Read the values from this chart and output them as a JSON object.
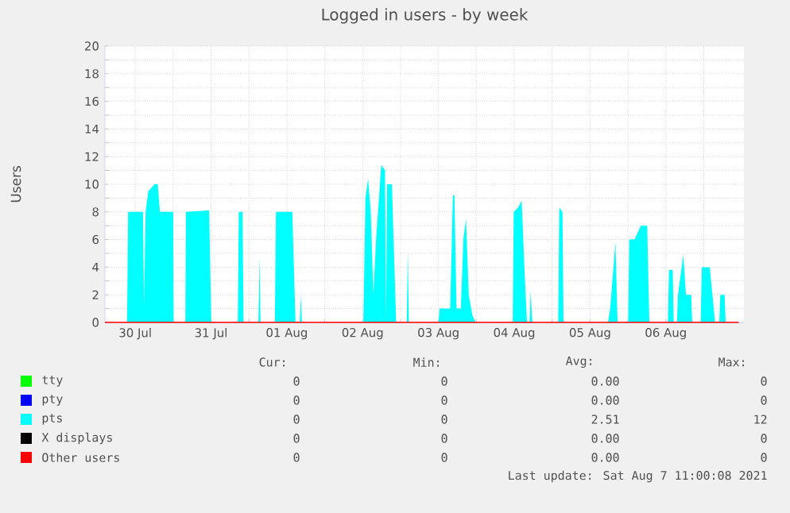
{
  "chart_data": {
    "type": "area",
    "title": "Logged in users - by week",
    "ylabel": "Users",
    "xlim": [
      "2021-07-30T02:24",
      "2021-08-07T12:43"
    ],
    "ylim": [
      0,
      20
    ],
    "xticks": [
      {
        "value": "2021-07-30T12:00",
        "label": "30 Jul"
      },
      {
        "value": "2021-07-31T00:00",
        "label": null
      },
      {
        "value": "2021-07-31T12:00",
        "label": "31 Jul"
      },
      {
        "value": "2021-08-01T00:00",
        "label": null
      },
      {
        "value": "2021-08-01T12:00",
        "label": "01 Aug"
      },
      {
        "value": "2021-08-02T00:00",
        "label": null
      },
      {
        "value": "2021-08-02T12:00",
        "label": "02 Aug"
      },
      {
        "value": "2021-08-03T00:00",
        "label": null
      },
      {
        "value": "2021-08-03T12:00",
        "label": "03 Aug"
      },
      {
        "value": "2021-08-04T00:00",
        "label": null
      },
      {
        "value": "2021-08-04T12:00",
        "label": "04 Aug"
      },
      {
        "value": "2021-08-05T00:00",
        "label": null
      },
      {
        "value": "2021-08-05T12:00",
        "label": "05 Aug"
      },
      {
        "value": "2021-08-06T00:00",
        "label": null
      },
      {
        "value": "2021-08-06T12:00",
        "label": "06 Aug"
      },
      {
        "value": "2021-08-07T00:00",
        "label": null
      }
    ],
    "yticks": [
      0,
      2,
      4,
      6,
      8,
      10,
      12,
      14,
      16,
      18,
      20
    ],
    "grid": true,
    "legend": "bottom",
    "series": [
      {
        "name": "tty",
        "color": "#00ff00",
        "type": "line"
      },
      {
        "name": "pty",
        "color": "#0000ff",
        "type": "line"
      },
      {
        "name": "pts",
        "color": "#00ffff",
        "x": [
          "2021-07-30T02:24",
          "2021-07-30T09:24",
          "2021-07-30T09:45",
          "2021-07-30T14:27",
          "2021-07-30T14:47",
          "2021-07-30T15:17",
          "2021-07-30T16:08",
          "2021-07-30T18:07",
          "2021-07-30T19:08",
          "2021-07-30T19:48",
          "2021-07-31T00:00",
          "2021-07-31T00:10",
          "2021-07-31T03:52",
          "2021-07-31T04:02",
          "2021-07-31T11:24",
          "2021-07-31T12:04",
          "2021-07-31T20:28",
          "2021-07-31T20:47",
          "2021-07-31T21:58",
          "2021-07-31T22:18",
          "2021-08-01T03:00",
          "2021-08-01T03:20",
          "2021-08-01T03:40",
          "2021-08-01T08:12",
          "2021-08-01T08:33",
          "2021-08-01T13:44",
          "2021-08-01T14:44",
          "2021-08-01T16:05",
          "2021-08-01T16:25",
          "2021-08-01T16:45",
          "2021-08-02T12:13",
          "2021-08-02T12:53",
          "2021-08-02T13:44",
          "2021-08-02T14:34",
          "2021-08-02T15:24",
          "2021-08-02T16:15",
          "2021-08-02T17:54",
          "2021-08-02T19:05",
          "2021-08-02T19:25",
          "2021-08-02T19:45",
          "2021-08-02T21:16",
          "2021-08-02T22:36",
          "2021-08-03T01:58",
          "2021-08-03T02:18",
          "2021-08-03T02:38",
          "2021-08-03T12:01",
          "2021-08-03T12:22",
          "2021-08-03T15:43",
          "2021-08-03T16:34",
          "2021-08-03T17:04",
          "2021-08-03T17:44",
          "2021-08-03T19:05",
          "2021-08-03T19:55",
          "2021-08-03T20:44",
          "2021-08-03T21:35",
          "2021-08-03T22:45",
          "2021-08-03T23:46",
          "2021-08-04T11:31",
          "2021-08-04T11:50",
          "2021-08-04T13:11",
          "2021-08-04T14:21",
          "2021-08-04T15:12",
          "2021-08-04T16:02",
          "2021-08-04T16:52",
          "2021-08-04T17:12",
          "2021-08-04T17:43",
          "2021-08-05T01:55",
          "2021-08-05T02:15",
          "2021-08-05T03:16",
          "2021-08-05T03:36",
          "2021-08-05T17:41",
          "2021-08-05T18:22",
          "2021-08-05T20:02",
          "2021-08-05T20:43",
          "2021-08-06T00:04",
          "2021-08-06T00:24",
          "2021-08-06T02:05",
          "2021-08-06T04:06",
          "2021-08-06T06:06",
          "2021-08-06T06:46",
          "2021-08-06T12:39",
          "2021-08-06T12:59",
          "2021-08-06T14:10",
          "2021-08-06T14:30",
          "2021-08-06T15:30",
          "2021-08-06T15:50",
          "2021-08-06T17:31",
          "2021-08-06T18:22",
          "2021-08-06T20:01",
          "2021-08-06T20:21",
          "2021-08-06T23:02",
          "2021-08-06T23:23",
          "2021-08-07T01:54",
          "2021-08-07T02:44",
          "2021-08-07T03:35",
          "2021-08-07T04:55",
          "2021-08-07T05:15",
          "2021-08-07T06:36",
          "2021-08-07T06:56",
          "2021-08-07T11:02"
        ],
        "values": [
          0,
          0,
          8,
          8,
          1.3,
          8,
          9.5,
          10,
          10,
          8,
          8,
          0,
          0,
          8,
          8.1,
          0,
          0,
          8,
          8,
          0,
          0,
          4.7,
          0,
          0,
          8,
          8,
          0,
          0,
          2,
          0,
          0,
          9,
          10.4,
          8,
          2,
          6,
          11.4,
          11,
          0,
          10,
          10,
          0,
          0,
          5.1,
          0,
          0,
          1,
          1,
          9.2,
          9.2,
          1,
          1,
          6.1,
          7.5,
          2,
          0.5,
          0,
          0,
          8,
          8.3,
          8.8,
          4,
          0,
          0,
          2.3,
          0,
          0,
          8.3,
          8,
          0,
          0,
          1,
          5.8,
          0,
          0,
          6,
          6,
          7,
          7,
          0,
          0,
          3.8,
          3.8,
          0,
          0,
          2,
          4.9,
          2,
          2,
          0,
          0,
          4,
          4,
          2,
          0,
          0,
          2,
          2,
          0,
          0
        ]
      },
      {
        "name": "X displays",
        "color": "#000000",
        "type": "line"
      },
      {
        "name": "Other users",
        "color": "#ff0000",
        "type": "line",
        "x": [
          "2021-07-30T02:24",
          "2021-08-07T11:02"
        ],
        "values": [
          0,
          0
        ]
      }
    ],
    "annotations": [
      "Cur:",
      "Min:",
      "Avg:",
      "Max:",
      "0",
      "0",
      "0.00",
      "0",
      "0",
      "0",
      "0.00",
      "0",
      "0",
      "0",
      "2.51",
      "12",
      "0",
      "0",
      "0.00",
      "0",
      "0",
      "0",
      "0.00",
      "0",
      "Last update: Sat Aug  7 11:00:08 2021"
    ]
  }
}
